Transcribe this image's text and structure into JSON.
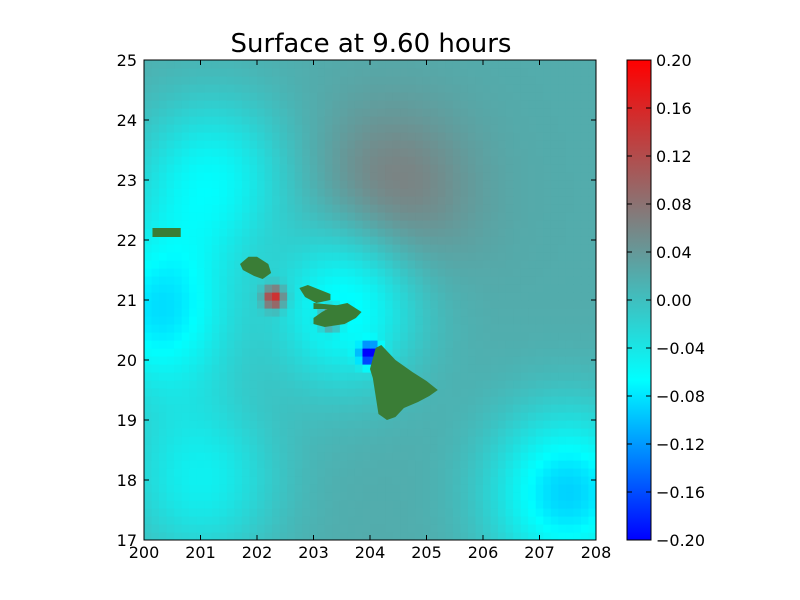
{
  "chart_data": {
    "type": "heatmap",
    "title": "Surface at 9.60 hours",
    "xlabel": "",
    "ylabel": "",
    "xlim": [
      200,
      208
    ],
    "ylim": [
      17,
      25
    ],
    "xticks": [
      "200",
      "201",
      "202",
      "203",
      "204",
      "205",
      "206",
      "207",
      "208"
    ],
    "yticks": [
      "17",
      "18",
      "19",
      "20",
      "21",
      "22",
      "23",
      "24",
      "25"
    ],
    "colorbar": {
      "min": -0.2,
      "max": 0.2,
      "ticks": [
        "−0.20",
        "−0.16",
        "−0.12",
        "−0.08",
        "−0.04",
        "0.00",
        "0.04",
        "0.08",
        "0.12",
        "0.16",
        "0.20"
      ],
      "colors": [
        "#0000ff",
        "#00ffff",
        "#7f7f7f",
        "#ff0000"
      ]
    },
    "land_color": "#3a7d36",
    "field_features": [
      {
        "kind": "background",
        "value": 0.02
      },
      {
        "kind": "high",
        "x": 204.4,
        "y": 22.8,
        "value": 0.07
      },
      {
        "kind": "high",
        "x": 202.3,
        "y": 21.05,
        "value": 0.2
      },
      {
        "kind": "high",
        "x": 203.3,
        "y": 20.7,
        "value": 0.2
      },
      {
        "kind": "high",
        "x": 202.8,
        "y": 21.1,
        "value": 0.1
      },
      {
        "kind": "low",
        "x": 204.0,
        "y": 20.1,
        "value": -0.18
      },
      {
        "kind": "low",
        "x": 203.3,
        "y": 21.0,
        "value": -0.14
      },
      {
        "kind": "low",
        "x": 200.3,
        "y": 20.8,
        "value": -0.08
      },
      {
        "kind": "low",
        "x": 201.2,
        "y": 23.0,
        "value": -0.06
      },
      {
        "kind": "low",
        "x": 207.5,
        "y": 17.8,
        "value": -0.09
      },
      {
        "kind": "low",
        "x": 201.0,
        "y": 18.0,
        "value": -0.05
      }
    ],
    "land": [
      {
        "name": "Niihau",
        "outline": [
          [
            200.15,
            22.2
          ],
          [
            200.65,
            22.2
          ],
          [
            200.65,
            22.05
          ],
          [
            200.15,
            22.05
          ]
        ]
      },
      {
        "name": "Kauai",
        "outline": [
          [
            201.7,
            21.6
          ],
          [
            201.85,
            21.72
          ],
          [
            202.0,
            21.72
          ],
          [
            202.2,
            21.6
          ],
          [
            202.25,
            21.45
          ],
          [
            202.1,
            21.35
          ],
          [
            201.95,
            21.4
          ],
          [
            201.75,
            21.5
          ]
        ]
      },
      {
        "name": "Oahu",
        "outline": [
          [
            202.75,
            21.2
          ],
          [
            202.9,
            21.25
          ],
          [
            203.3,
            21.1
          ],
          [
            203.3,
            21.0
          ],
          [
            203.05,
            20.95
          ],
          [
            202.85,
            21.05
          ]
        ]
      },
      {
        "name": "Molokai",
        "outline": [
          [
            203.0,
            20.95
          ],
          [
            203.55,
            20.9
          ],
          [
            203.5,
            20.85
          ],
          [
            203.0,
            20.85
          ]
        ]
      },
      {
        "name": "Maui",
        "outline": [
          [
            203.0,
            20.6
          ],
          [
            203.2,
            20.55
          ],
          [
            203.55,
            20.6
          ],
          [
            203.75,
            20.7
          ],
          [
            203.85,
            20.8
          ],
          [
            203.6,
            20.95
          ],
          [
            203.35,
            20.9
          ],
          [
            203.15,
            20.8
          ],
          [
            203.0,
            20.7
          ]
        ]
      },
      {
        "name": "Hawaii",
        "outline": [
          [
            204.1,
            20.2
          ],
          [
            204.2,
            20.25
          ],
          [
            204.45,
            20.0
          ],
          [
            204.75,
            19.8
          ],
          [
            205.0,
            19.65
          ],
          [
            205.2,
            19.5
          ],
          [
            205.05,
            19.4
          ],
          [
            204.85,
            19.3
          ],
          [
            204.6,
            19.2
          ],
          [
            204.45,
            19.05
          ],
          [
            204.3,
            19.0
          ],
          [
            204.15,
            19.1
          ],
          [
            204.1,
            19.4
          ],
          [
            204.05,
            19.7
          ],
          [
            204.0,
            19.85
          ]
        ]
      }
    ]
  }
}
